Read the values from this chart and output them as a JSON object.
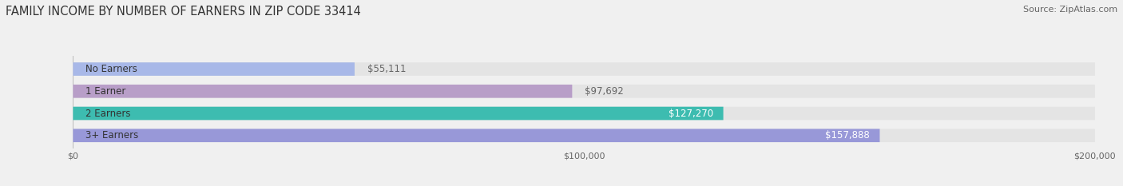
{
  "title": "FAMILY INCOME BY NUMBER OF EARNERS IN ZIP CODE 33414",
  "source": "Source: ZipAtlas.com",
  "categories": [
    "No Earners",
    "1 Earner",
    "2 Earners",
    "3+ Earners"
  ],
  "values": [
    55111,
    97692,
    127270,
    157888
  ],
  "labels": [
    "$55,111",
    "$97,692",
    "$127,270",
    "$157,888"
  ],
  "bar_colors": [
    "#a8b8e8",
    "#b89ec8",
    "#3dbcb0",
    "#9898d8"
  ],
  "label_colors": [
    "#666666",
    "#666666",
    "#ffffff",
    "#ffffff"
  ],
  "xlim": [
    0,
    200000
  ],
  "xtick_values": [
    0,
    100000,
    200000
  ],
  "xtick_labels": [
    "$0",
    "$100,000",
    "$200,000"
  ],
  "background_color": "#f0f0f0",
  "bar_bg_color": "#e4e4e4",
  "title_fontsize": 10.5,
  "source_fontsize": 8,
  "label_fontsize": 8.5,
  "category_fontsize": 8.5
}
